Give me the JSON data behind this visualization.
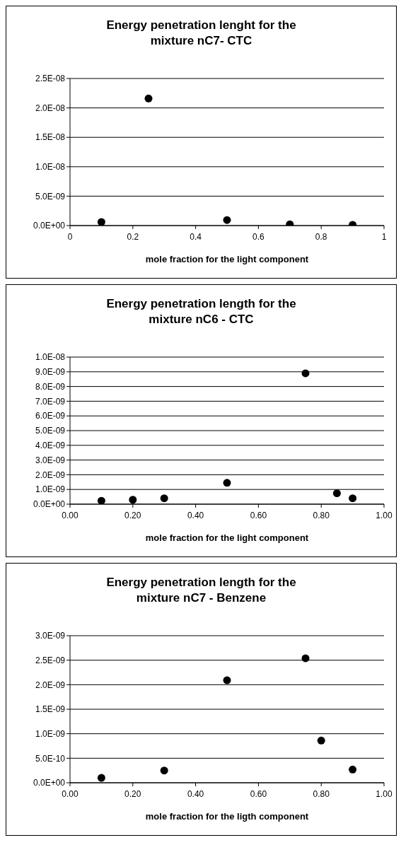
{
  "chart_data": [
    {
      "type": "scatter",
      "title": "Energy penetration lenght for the mixture nC7- CTC",
      "xlabel": "mole fraction for the light component",
      "x": [
        0.1,
        0.25,
        0.5,
        0.7,
        0.9
      ],
      "values": [
        6e-10,
        2.16e-08,
        9.4e-10,
        2.2e-10,
        1.3e-10
      ],
      "color": "#000000",
      "marker": "circle",
      "grid": "y",
      "xlim": [
        0,
        1
      ],
      "xticks": [
        0,
        0.2,
        0.4,
        0.6,
        0.8,
        1
      ],
      "ylim": [
        0,
        2.5e-08
      ],
      "yticks": [
        {
          "value": 0,
          "label": "0.0E+00"
        },
        {
          "value": 5e-09,
          "label": "5.0E-09"
        },
        {
          "value": 1e-08,
          "label": "1.0E-08"
        },
        {
          "value": 1.5e-08,
          "label": "1.5E-08"
        },
        {
          "value": 2e-08,
          "label": "2.0E-08"
        },
        {
          "value": 2.5e-08,
          "label": "2.5E-08"
        }
      ]
    },
    {
      "type": "scatter",
      "title": "Energy penetration length for the mixture nC6 - CTC",
      "xlabel": "mole fraction for the light component",
      "x": [
        0.1,
        0.2,
        0.3,
        0.5,
        0.75,
        0.85,
        0.9
      ],
      "values": [
        2.3e-10,
        3e-10,
        4e-10,
        1.45e-09,
        8.9e-09,
        7.4e-10,
        4e-10
      ],
      "color": "#000000",
      "marker": "circle",
      "grid": "y",
      "xlim": [
        0,
        1
      ],
      "xticks": [
        {
          "value": 0,
          "label": "0.00"
        },
        {
          "value": 0.2,
          "label": "0.20"
        },
        {
          "value": 0.4,
          "label": "0.40"
        },
        {
          "value": 0.6,
          "label": "0.60"
        },
        {
          "value": 0.8,
          "label": "0.80"
        },
        {
          "value": 1,
          "label": "1.00"
        }
      ],
      "ylim": [
        0,
        1e-08
      ],
      "yticks": [
        {
          "value": 0,
          "label": "0.0E+00"
        },
        {
          "value": 1e-09,
          "label": "1.0E-09"
        },
        {
          "value": 2e-09,
          "label": "2.0E-09"
        },
        {
          "value": 3e-09,
          "label": "3.0E-09"
        },
        {
          "value": 4e-09,
          "label": "4.0E-09"
        },
        {
          "value": 5e-09,
          "label": "5.0E-09"
        },
        {
          "value": 6e-09,
          "label": "6.0E-09"
        },
        {
          "value": 7e-09,
          "label": "7.0E-09"
        },
        {
          "value": 8e-09,
          "label": "8.0E-09"
        },
        {
          "value": 9e-09,
          "label": "9.0E-09"
        },
        {
          "value": 1e-08,
          "label": "1.0E-08"
        }
      ]
    },
    {
      "type": "scatter",
      "title": "Energy penetration length for the mixture nC7 - Benzene",
      "xlabel": "mole fraction for the ligth component",
      "x": [
        0.1,
        0.3,
        0.5,
        0.75,
        0.8,
        0.9
      ],
      "values": [
        1e-10,
        2.5e-10,
        2.09e-09,
        2.54e-09,
        8.6e-10,
        2.7e-10
      ],
      "color": "#000000",
      "marker": "circle",
      "grid": "y",
      "xlim": [
        0,
        1
      ],
      "xticks": [
        {
          "value": 0,
          "label": "0.00"
        },
        {
          "value": 0.2,
          "label": "0.20"
        },
        {
          "value": 0.4,
          "label": "0.40"
        },
        {
          "value": 0.6,
          "label": "0.60"
        },
        {
          "value": 0.8,
          "label": "0.80"
        },
        {
          "value": 1,
          "label": "1.00"
        }
      ],
      "ylim": [
        0,
        3e-09
      ],
      "yticks": [
        {
          "value": 0,
          "label": "0.0E+00"
        },
        {
          "value": 5e-10,
          "label": "5.0E-10"
        },
        {
          "value": 1e-09,
          "label": "1.0E-09"
        },
        {
          "value": 1.5e-09,
          "label": "1.5E-09"
        },
        {
          "value": 2e-09,
          "label": "2.0E-09"
        },
        {
          "value": 2.5e-09,
          "label": "2.5E-09"
        },
        {
          "value": 3e-09,
          "label": "3.0E-09"
        }
      ]
    }
  ]
}
